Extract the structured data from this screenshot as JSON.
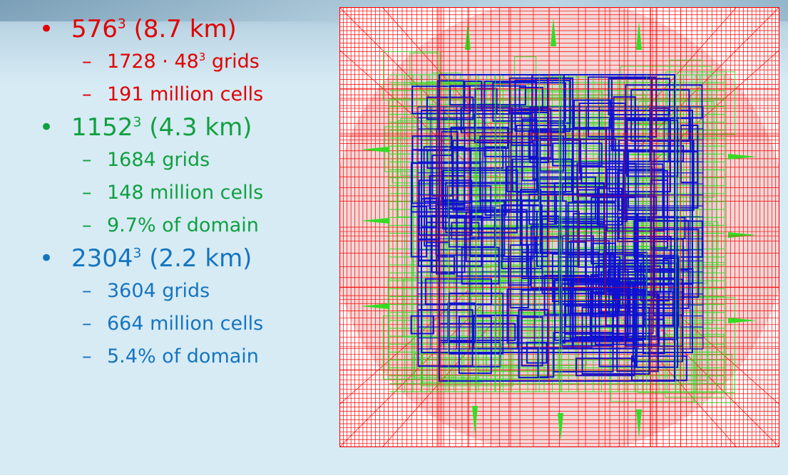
{
  "colors": {
    "level1": "#e00000",
    "level2": "#10a040",
    "level3": "#1575c0",
    "mesh_red": "#ff0000",
    "mesh_green": "#33dd22",
    "mesh_blue": "#1010d0"
  },
  "levels": [
    {
      "base": "576",
      "sup": "3",
      "rest": " (8.7 km)",
      "items": [
        {
          "pre": "1728 · 48",
          "sup": "3",
          "post": " grids"
        },
        {
          "pre": "191 million cells",
          "sup": "",
          "post": ""
        }
      ]
    },
    {
      "base": "1152",
      "sup": "3",
      "rest": " (4.3 km)",
      "items": [
        {
          "pre": "1684 grids",
          "sup": "",
          "post": ""
        },
        {
          "pre": "148 million cells",
          "sup": "",
          "post": ""
        },
        {
          "pre": "9.7% of domain",
          "sup": "",
          "post": ""
        }
      ]
    },
    {
      "base": "2304",
      "sup": "3",
      "rest": " (2.2 km)",
      "items": [
        {
          "pre": "3604 grids",
          "sup": "",
          "post": ""
        },
        {
          "pre": "664 million cells",
          "sup": "",
          "post": ""
        },
        {
          "pre": "5.4% of domain",
          "sup": "",
          "post": ""
        }
      ]
    }
  ],
  "bullet_glyph": "•",
  "dash_glyph": "–"
}
